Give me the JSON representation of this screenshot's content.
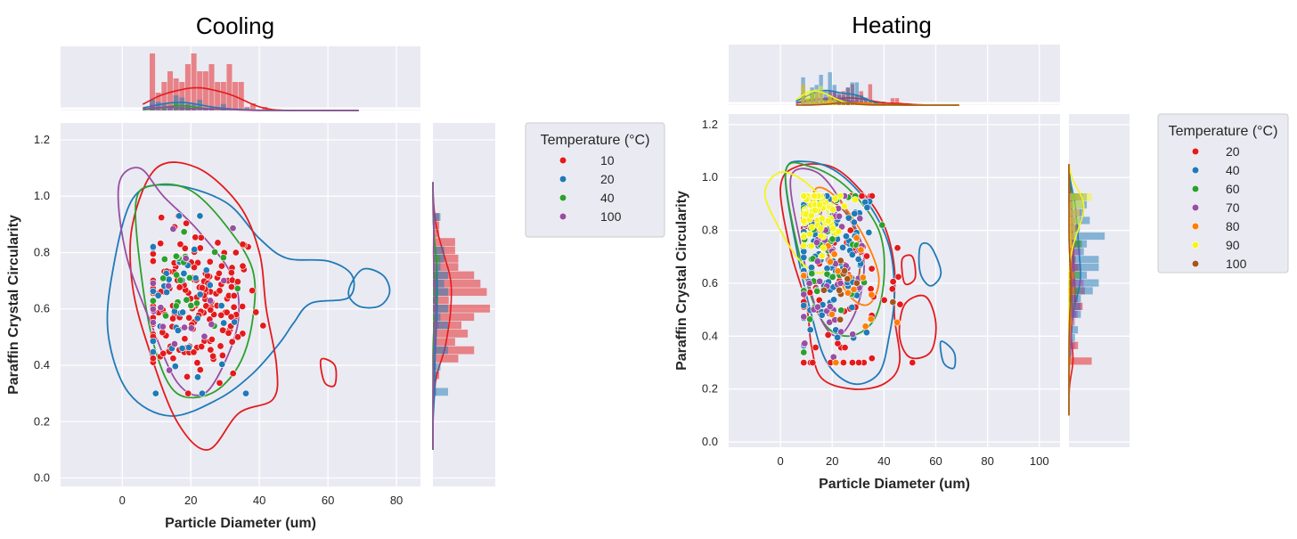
{
  "chart_data": [
    {
      "type": "scatter",
      "title": "Cooling",
      "xlabel": "Particle Diameter (um)",
      "ylabel": "Paraffin Crystal Circularity",
      "xlim": [
        -18,
        87
      ],
      "ylim": [
        -0.03,
        1.26
      ],
      "x_ticks": [
        0,
        20,
        40,
        60,
        80
      ],
      "y_ticks": [
        0.0,
        0.2,
        0.4,
        0.6,
        0.8,
        1.0,
        1.2
      ],
      "grid": true,
      "marginal_histograms": true,
      "kde_contours": true,
      "legend": {
        "title": "Temperature (°C)",
        "placement": "outside-right"
      },
      "series": [
        {
          "name": "10",
          "color": "#e41a1c"
        },
        {
          "name": "20",
          "color": "#1f7ab8"
        },
        {
          "name": "40",
          "color": "#2ca02c"
        },
        {
          "name": "100",
          "color": "#984ea3"
        }
      ]
    },
    {
      "type": "scatter",
      "title": "Heating",
      "xlabel": "Particle Diameter (um)",
      "ylabel": "Paraffin Crystal Circularity",
      "xlim": [
        -20,
        108
      ],
      "ylim": [
        -0.02,
        1.24
      ],
      "x_ticks": [
        0,
        20,
        40,
        60,
        80,
        100
      ],
      "y_ticks": [
        0.0,
        0.2,
        0.4,
        0.6,
        0.8,
        1.0,
        1.2
      ],
      "grid": true,
      "marginal_histograms": true,
      "kde_contours": true,
      "legend": {
        "title": "Temperature (°C)",
        "placement": "outside-right"
      },
      "series": [
        {
          "name": "20",
          "color": "#e41a1c"
        },
        {
          "name": "40",
          "color": "#1f7ab8"
        },
        {
          "name": "60",
          "color": "#2ca02c"
        },
        {
          "name": "70",
          "color": "#984ea3"
        },
        {
          "name": "80",
          "color": "#ff7f00"
        },
        {
          "name": "90",
          "color": "#f5f51a"
        },
        {
          "name": "100",
          "color": "#a6561c"
        }
      ]
    }
  ]
}
